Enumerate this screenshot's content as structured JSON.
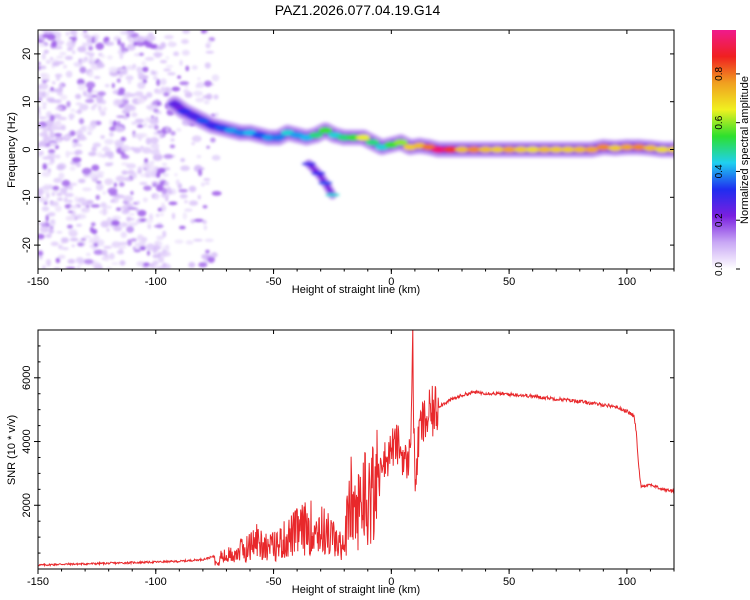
{
  "title": "PAZ1.2026.077.04.19.G14",
  "colors": {
    "trace": "#e8282b",
    "axis": "#000000",
    "speckle": "#8a3df0"
  },
  "chart_data": [
    {
      "type": "heatmap",
      "name": "spectrogram",
      "xlabel": "Height of straight line (km)",
      "ylabel": "Frequency (Hz)",
      "xlim": [
        -150,
        120
      ],
      "ylim": [
        -25,
        25
      ],
      "xticks": [
        -150,
        -100,
        -50,
        0,
        50,
        100
      ],
      "yticks": [
        -20,
        -10,
        0,
        10,
        20
      ],
      "colorbar": {
        "label": "Normalized spectral amplitude",
        "range": [
          0.0,
          0.98
        ],
        "ticks": [
          "0.0",
          "0.2",
          "0.4",
          "0.6",
          "0.8"
        ],
        "tick_values": [
          0.0,
          0.2,
          0.4,
          0.6,
          0.8
        ],
        "colormap": [
          "#ffffff",
          "#c9a8f5",
          "#7a1fe0",
          "#1f2df0",
          "#1fd0f0",
          "#2de02d",
          "#f0f020",
          "#f0a020",
          "#f02020",
          "#f01a8c"
        ]
      },
      "signal_track": [
        {
          "x": -92,
          "f": 9.5,
          "a": 0.25
        },
        {
          "x": -88,
          "f": 8.0,
          "a": 0.3
        },
        {
          "x": -84,
          "f": 7.0,
          "a": 0.28
        },
        {
          "x": -80,
          "f": 6.0,
          "a": 0.35
        },
        {
          "x": -76,
          "f": 5.0,
          "a": 0.3
        },
        {
          "x": -72,
          "f": 4.5,
          "a": 0.35
        },
        {
          "x": -68,
          "f": 4.0,
          "a": 0.4
        },
        {
          "x": -64,
          "f": 3.5,
          "a": 0.38
        },
        {
          "x": -60,
          "f": 3.5,
          "a": 0.42
        },
        {
          "x": -56,
          "f": 3.0,
          "a": 0.35
        },
        {
          "x": -52,
          "f": 2.5,
          "a": 0.4
        },
        {
          "x": -48,
          "f": 2.5,
          "a": 0.38
        },
        {
          "x": -44,
          "f": 3.5,
          "a": 0.45
        },
        {
          "x": -40,
          "f": 3.0,
          "a": 0.4
        },
        {
          "x": -36,
          "f": 2.5,
          "a": 0.42
        },
        {
          "x": -32,
          "f": 3.0,
          "a": 0.5
        },
        {
          "x": -28,
          "f": 4.0,
          "a": 0.55
        },
        {
          "x": -24,
          "f": 3.0,
          "a": 0.45
        },
        {
          "x": -20,
          "f": 2.5,
          "a": 0.5
        },
        {
          "x": -16,
          "f": 2.5,
          "a": 0.55
        },
        {
          "x": -12,
          "f": 2.5,
          "a": 0.65
        },
        {
          "x": -8,
          "f": 1.5,
          "a": 0.5
        },
        {
          "x": -4,
          "f": 0.5,
          "a": 0.45
        },
        {
          "x": 0,
          "f": 1.0,
          "a": 0.55
        },
        {
          "x": 4,
          "f": 1.5,
          "a": 0.6
        },
        {
          "x": 8,
          "f": 0.5,
          "a": 0.7
        },
        {
          "x": 12,
          "f": 0.8,
          "a": 0.72
        },
        {
          "x": 16,
          "f": 0.5,
          "a": 0.8
        },
        {
          "x": 20,
          "f": 0.0,
          "a": 0.95
        },
        {
          "x": 25,
          "f": 0.0,
          "a": 0.85
        },
        {
          "x": 30,
          "f": 0.0,
          "a": 0.72
        },
        {
          "x": 35,
          "f": 0.0,
          "a": 0.78
        },
        {
          "x": 40,
          "f": 0.0,
          "a": 0.72
        },
        {
          "x": 45,
          "f": 0.0,
          "a": 0.7
        },
        {
          "x": 50,
          "f": 0.0,
          "a": 0.75
        },
        {
          "x": 55,
          "f": 0.0,
          "a": 0.7
        },
        {
          "x": 60,
          "f": 0.0,
          "a": 0.68
        },
        {
          "x": 65,
          "f": 0.0,
          "a": 0.72
        },
        {
          "x": 70,
          "f": 0.0,
          "a": 0.7
        },
        {
          "x": 75,
          "f": 0.0,
          "a": 0.7
        },
        {
          "x": 80,
          "f": 0.0,
          "a": 0.72
        },
        {
          "x": 85,
          "f": 0.0,
          "a": 0.75
        },
        {
          "x": 90,
          "f": 0.5,
          "a": 0.78
        },
        {
          "x": 95,
          "f": 0.3,
          "a": 0.7
        },
        {
          "x": 100,
          "f": 0.5,
          "a": 0.75
        },
        {
          "x": 105,
          "f": 0.5,
          "a": 0.78
        },
        {
          "x": 110,
          "f": 0.3,
          "a": 0.72
        },
        {
          "x": 115,
          "f": 0.0,
          "a": 0.68
        },
        {
          "x": 120,
          "f": 0.0,
          "a": 0.7
        }
      ],
      "secondary_branch": [
        {
          "x": -35,
          "f": -3.0,
          "a": 0.3
        },
        {
          "x": -31,
          "f": -5.0,
          "a": 0.32
        },
        {
          "x": -28,
          "f": -7.0,
          "a": 0.35
        },
        {
          "x": -25,
          "f": -9.5,
          "a": 0.45
        }
      ],
      "noise_region_xlim": [
        -150,
        -80
      ]
    },
    {
      "type": "line",
      "name": "snr",
      "xlabel": "Height of straight line (km)",
      "ylabel": "SNR (10 * v/v)",
      "xlim": [
        -150,
        120
      ],
      "ylim": [
        0,
        7500
      ],
      "xticks": [
        -150,
        -100,
        -50,
        0,
        50,
        100
      ],
      "yticks": [
        2000,
        4000,
        6000
      ],
      "series": [
        {
          "name": "SNR",
          "x": [
            -150,
            -140,
            -130,
            -120,
            -110,
            -100,
            -90,
            -80,
            -70,
            -65,
            -60,
            -57,
            -55,
            -50,
            -45,
            -40,
            -35,
            -30,
            -25,
            -22,
            -20,
            -17,
            -15,
            -12,
            -10,
            -8,
            -5,
            -2,
            0,
            3,
            5,
            7,
            8,
            9,
            10,
            12,
            15,
            20,
            25,
            30,
            35,
            40,
            45,
            50,
            55,
            60,
            65,
            70,
            75,
            80,
            85,
            90,
            95,
            100,
            103,
            104,
            105,
            106,
            110,
            115,
            120
          ],
          "y": [
            120,
            150,
            160,
            180,
            200,
            220,
            240,
            300,
            500,
            700,
            900,
            1200,
            1000,
            900,
            1200,
            1500,
            1700,
            1600,
            1300,
            900,
            1200,
            2800,
            2000,
            3200,
            2800,
            3300,
            3600,
            3400,
            3800,
            3900,
            3500,
            3300,
            3700,
            7300,
            2500,
            4400,
            4700,
            5100,
            5300,
            5450,
            5550,
            5520,
            5500,
            5480,
            5460,
            5420,
            5380,
            5340,
            5300,
            5260,
            5200,
            5150,
            5100,
            4950,
            4800,
            4300,
            3200,
            2600,
            2650,
            2500,
            2450
          ]
        }
      ]
    }
  ]
}
